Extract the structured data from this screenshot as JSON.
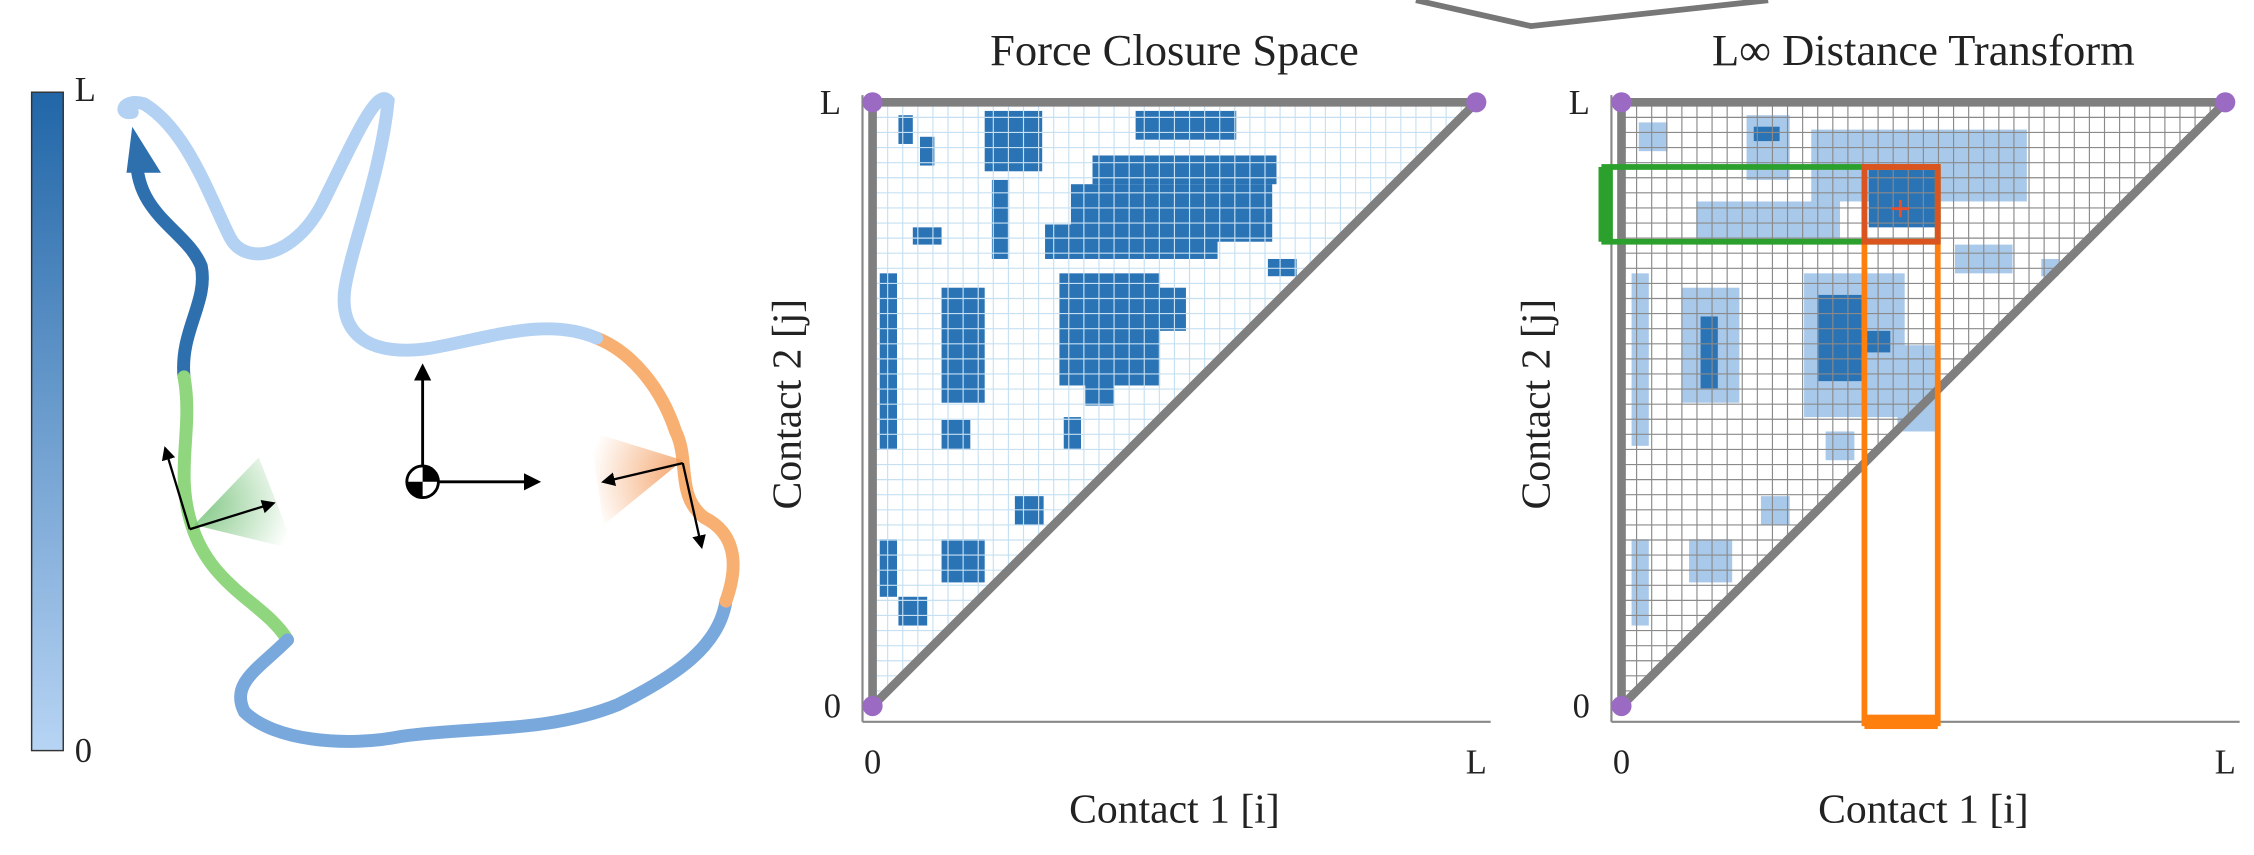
{
  "colorbar": {
    "max_label": "L",
    "min_label": "0"
  },
  "panels": [
    {
      "title": "Force Closure Space",
      "x_label": "Contact 1 [i]",
      "y_label": "Contact 2 [j]",
      "x_ticks": [
        "0",
        "L"
      ],
      "y_ticks": [
        "0",
        "L"
      ]
    },
    {
      "title": "L∞ Distance Transform",
      "x_label": "Contact 1 [i]",
      "y_label": "Contact 2 [j]",
      "x_ticks": [
        "0",
        "L"
      ],
      "y_ticks": [
        "0",
        "L"
      ]
    }
  ]
}
